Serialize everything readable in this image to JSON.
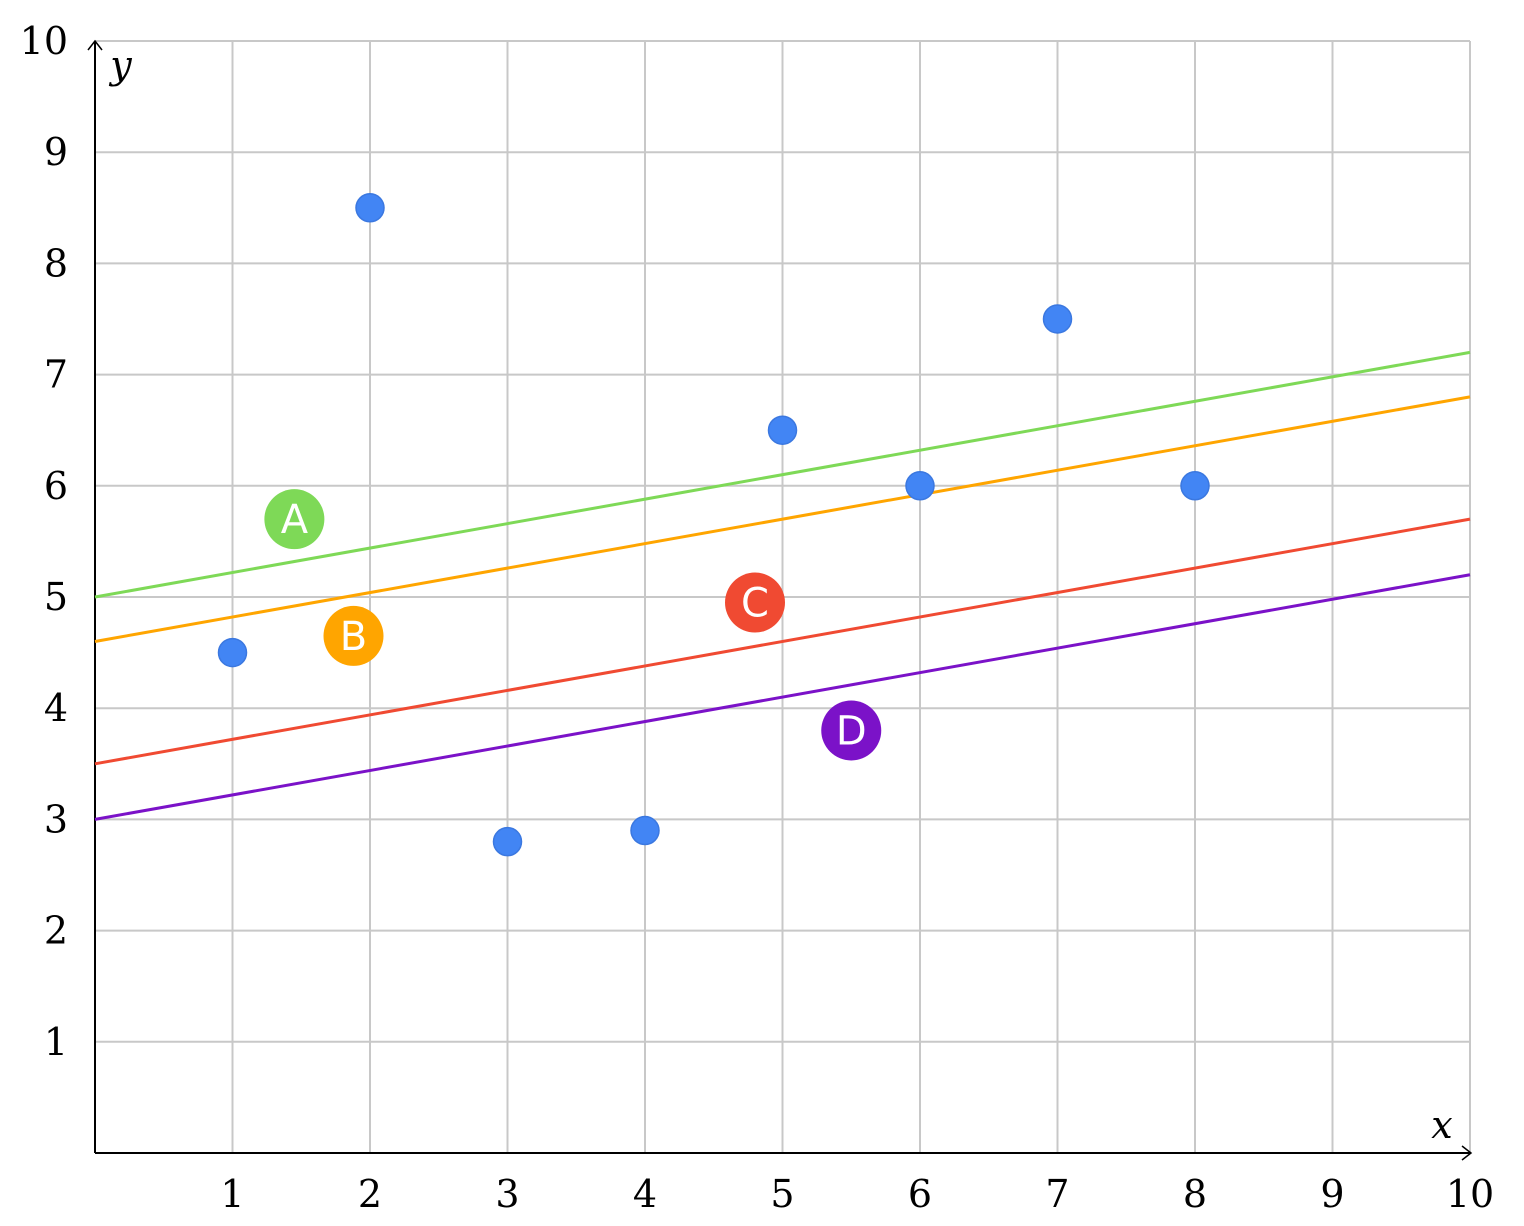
{
  "chart_data": {
    "type": "scatter",
    "title": "",
    "xlabel": "x",
    "ylabel": "y",
    "xlim": [
      0,
      10
    ],
    "ylim": [
      0,
      10
    ],
    "grid": true,
    "x_ticks": [
      1,
      2,
      3,
      4,
      5,
      6,
      7,
      8,
      9,
      10
    ],
    "y_ticks": [
      1,
      2,
      3,
      4,
      5,
      6,
      7,
      8,
      9,
      10
    ],
    "points": {
      "color": "#4285f4",
      "x": [
        1,
        2,
        3,
        4,
        5,
        6,
        7,
        8
      ],
      "y": [
        4.5,
        8.5,
        2.8,
        2.9,
        6.5,
        6.0,
        7.5,
        6.0
      ]
    },
    "lines": [
      {
        "name": "A",
        "color": "#7ed957",
        "intercept": 5.0,
        "slope": 0.22,
        "label_pos": [
          1.45,
          5.7
        ]
      },
      {
        "name": "B",
        "color": "#ffa500",
        "intercept": 4.6,
        "slope": 0.22,
        "label_pos": [
          1.88,
          4.65
        ]
      },
      {
        "name": "C",
        "color": "#f04a32",
        "intercept": 3.5,
        "slope": 0.22,
        "label_pos": [
          4.8,
          4.95
        ]
      },
      {
        "name": "D",
        "color": "#7b12c8",
        "intercept": 3.0,
        "slope": 0.22,
        "label_pos": [
          5.5,
          3.8
        ]
      }
    ]
  }
}
